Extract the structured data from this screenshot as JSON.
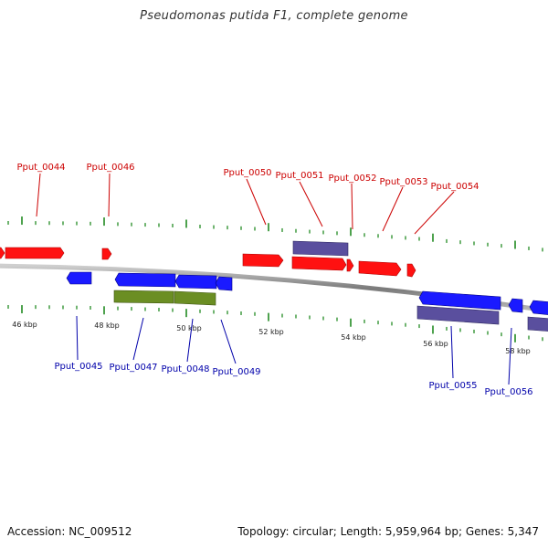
{
  "title": "Pseudomonas putida F1, complete genome",
  "footer": {
    "accession": "Accession: NC_009512",
    "summary": "Topology: circular; Length: 5,959,964 bp; Genes: 5,347"
  },
  "colors": {
    "forward_gene": "#ff0000",
    "reverse_gene": "#0000ff",
    "purple_feature": "#5a4f9e",
    "green_feature": "#6b8e23",
    "tick": "#228b22",
    "backbone": "#8a8a8a",
    "forward_label": "#cc0000",
    "reverse_label": "#0000aa"
  },
  "scale": {
    "tick_labels": [
      "46 kbp",
      "48 kbp",
      "50 kbp",
      "52 kbp",
      "54 kbp",
      "56 kbp",
      "58 kbp"
    ]
  },
  "forward_labels": [
    "Pput_0044",
    "Pput_0046",
    "Pput_0050",
    "Pput_0051",
    "Pput_0052",
    "Pput_0053",
    "Pput_0054"
  ],
  "reverse_labels": [
    "Pput_0045",
    "Pput_0047",
    "Pput_0048",
    "Pput_0049",
    "Pput_0055",
    "Pput_0056"
  ]
}
